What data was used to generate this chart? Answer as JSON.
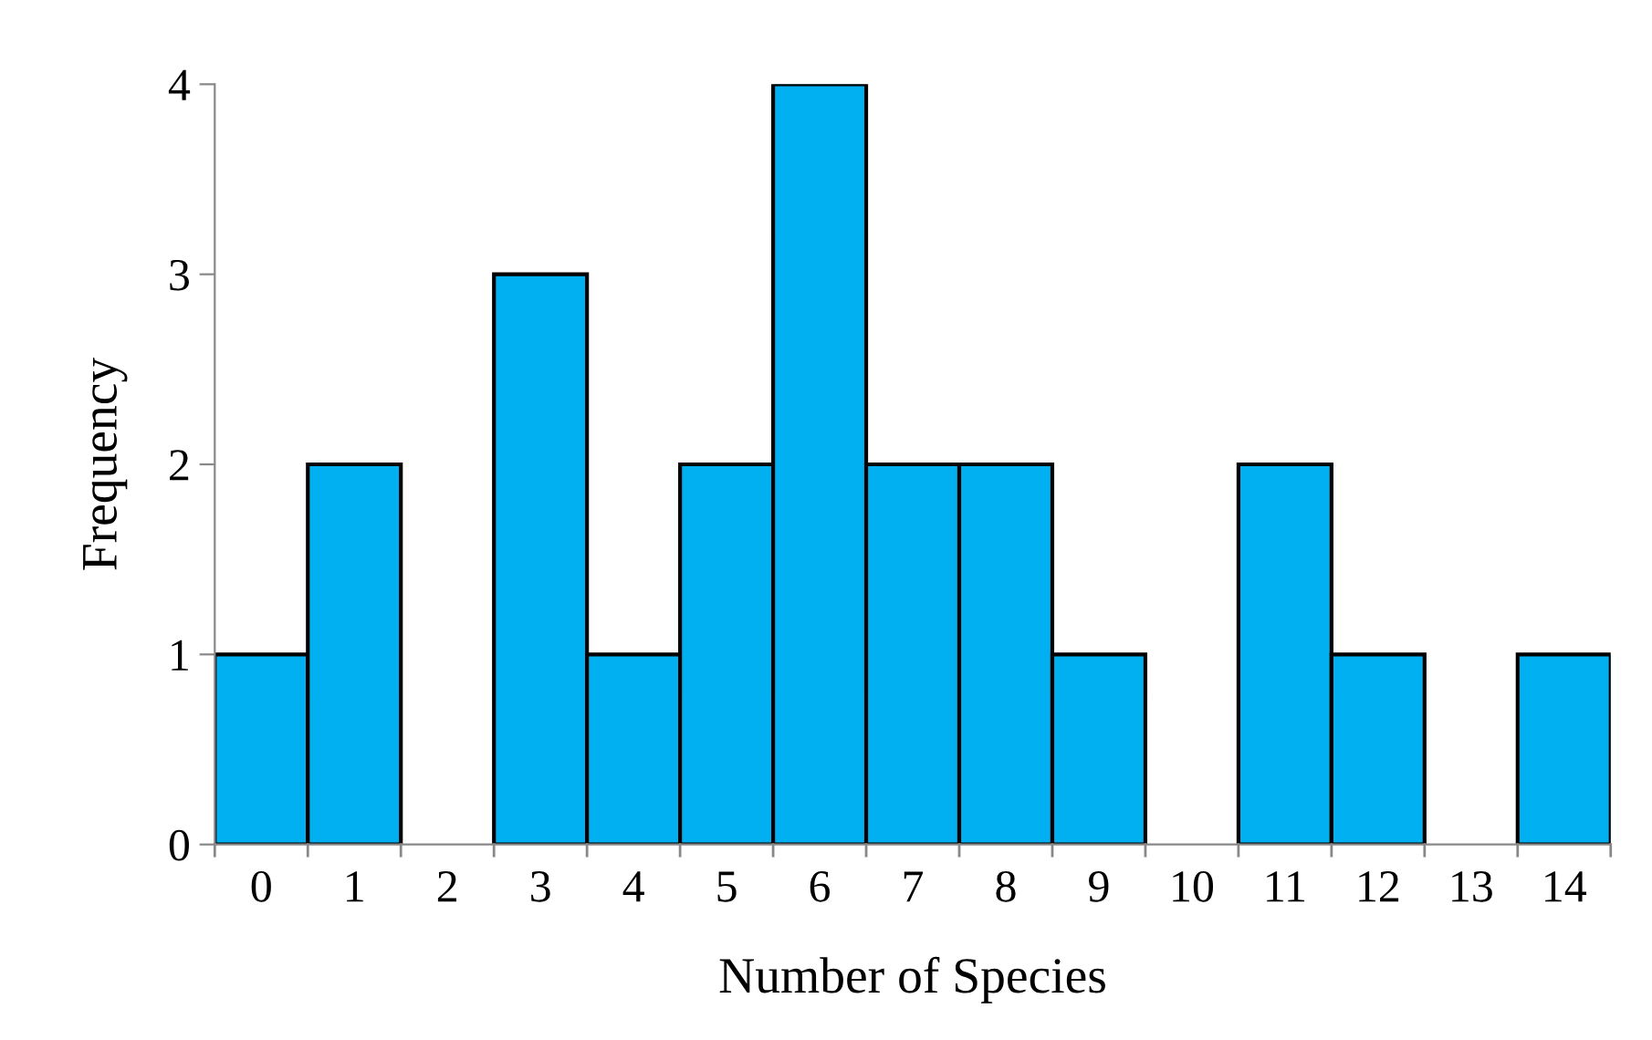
{
  "chart_data": {
    "type": "bar",
    "xlabel": "Number of Species",
    "ylabel": "Frequency",
    "categories": [
      "0",
      "1",
      "2",
      "3",
      "4",
      "5",
      "6",
      "7",
      "8",
      "9",
      "10",
      "11",
      "12",
      "13",
      "14"
    ],
    "values": [
      1,
      2,
      0,
      3,
      1,
      2,
      4,
      2,
      2,
      1,
      0,
      2,
      1,
      0,
      1
    ],
    "color": "#00b0f0",
    "ylim": [
      0,
      4
    ],
    "yticks": [
      0,
      1,
      2,
      3,
      4
    ],
    "grid": false,
    "legend": false
  }
}
